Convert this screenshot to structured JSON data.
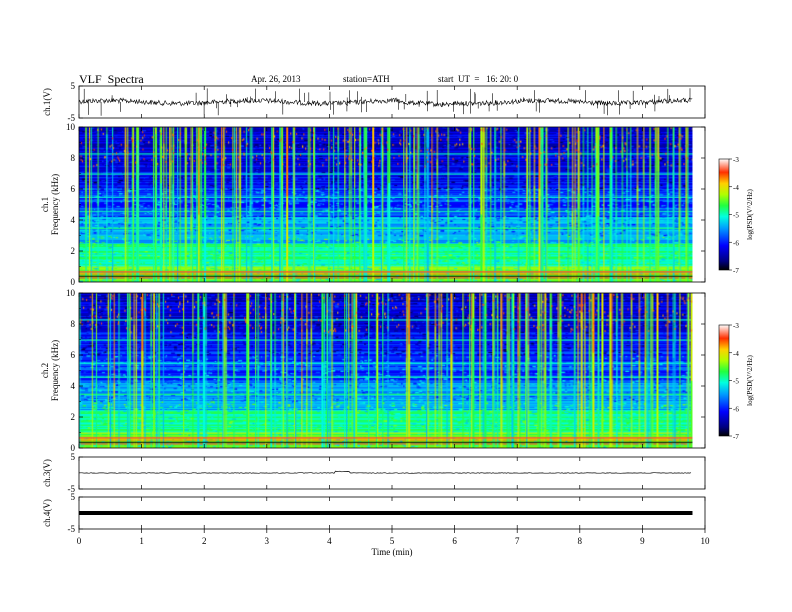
{
  "header": {
    "title": "VLF  Spectra",
    "date": "Apr. 26, 2013",
    "station": "station=ATH",
    "start": "start  UT  =   16: 20: 0"
  },
  "chart_data": [
    {
      "type": "line",
      "panel": "ch1-waveform",
      "ylabel": "ch.1(V)",
      "ylim": [
        -5,
        5
      ],
      "yticks": [
        5,
        -5
      ],
      "x_range_min": [
        0,
        9.8
      ],
      "baseline_v": 0,
      "description_none": ""
    },
    {
      "type": "heatmap",
      "panel": "ch1-spectrogram",
      "ylabel_top": "ch.1",
      "ylabel": "Frequency (kHz)",
      "ylim": [
        0,
        10
      ],
      "yticks": [
        0,
        2,
        4,
        6,
        8,
        10
      ],
      "x_range_min": [
        0,
        9.8
      ],
      "colorbar": {
        "label": "log(PSD(V^2/Hz)",
        "range": [
          -7,
          -3
        ],
        "ticks": [
          -3,
          -4,
          -5,
          -6,
          -7
        ]
      }
    },
    {
      "type": "heatmap",
      "panel": "ch2-spectrogram",
      "ylabel_top": "ch.2",
      "ylabel": "Frequency (kHz)",
      "ylim": [
        0,
        10
      ],
      "yticks": [
        0,
        2,
        4,
        6,
        8,
        10
      ],
      "x_range_min": [
        0,
        9.8
      ],
      "colorbar": {
        "label": "log(PSD(V^2/Hz)",
        "range": [
          -7,
          -3
        ],
        "ticks": [
          -3,
          -4,
          -5,
          -6,
          -7
        ]
      }
    },
    {
      "type": "line",
      "panel": "ch3-waveform",
      "ylabel": "ch.3(V)",
      "ylim": [
        -5,
        5
      ],
      "yticks": [
        5,
        -5
      ],
      "x_range_min": [
        0,
        9.8
      ],
      "baseline_v": 0
    },
    {
      "type": "line",
      "panel": "ch4-waveform",
      "ylabel": "ch.4(V)",
      "ylim": [
        -5,
        5
      ],
      "yticks": [
        5,
        -5
      ],
      "x_range_min": [
        0,
        9.8
      ],
      "baseline_v": 0
    }
  ],
  "xaxis": {
    "label": "Time  (min)",
    "range": [
      0,
      10
    ],
    "ticks": [
      0,
      1,
      2,
      3,
      4,
      5,
      6,
      7,
      8,
      9,
      10
    ]
  }
}
